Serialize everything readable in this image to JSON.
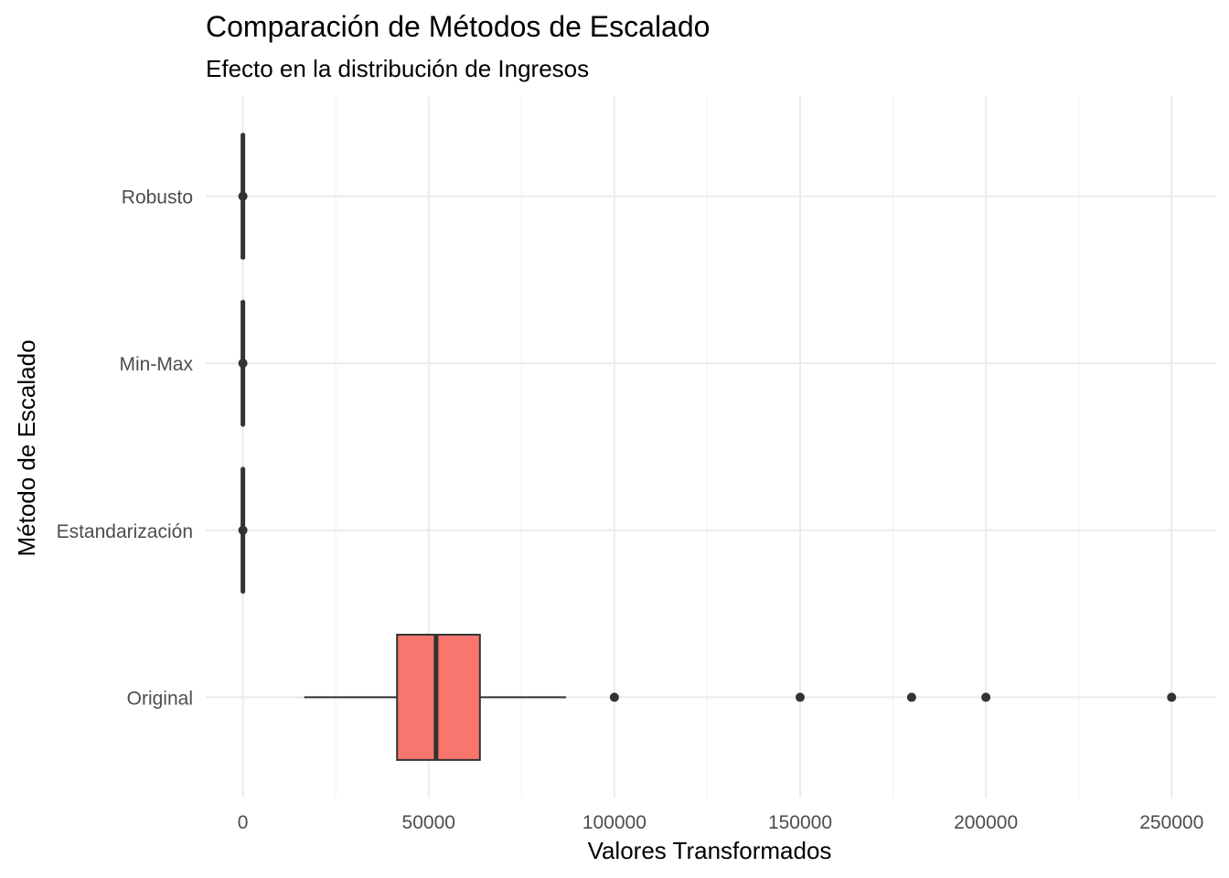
{
  "chart_data": {
    "type": "boxplot",
    "orientation": "horizontal",
    "title": "Comparación de Métodos de Escalado",
    "subtitle": "Efecto en la distribución de Ingresos",
    "xlabel": "Valores Transformados",
    "ylabel": "Método de Escalado",
    "xlim": [
      -10000,
      262000
    ],
    "x_ticks": [
      0,
      50000,
      100000,
      150000,
      200000,
      250000
    ],
    "x_tick_labels": [
      "0",
      "50000",
      "100000",
      "150000",
      "200000",
      "250000"
    ],
    "grid": true,
    "legend": "none",
    "categories": [
      "Original",
      "Estandarización",
      "Min-Max",
      "Robusto"
    ],
    "boxes": [
      {
        "category": "Original",
        "whisker_low": 16500,
        "q1": 41500,
        "median": 52000,
        "q3": 63800,
        "whisker_high": 87000,
        "outliers": [
          100000,
          150000,
          180000,
          200000,
          250000
        ],
        "color": "#f8766d"
      },
      {
        "category": "Estandarización",
        "whisker_low": 0,
        "q1": 0,
        "median": 0,
        "q3": 0,
        "whisker_high": 0,
        "outliers": [
          0
        ],
        "color": "#f8766d"
      },
      {
        "category": "Min-Max",
        "whisker_low": 0,
        "q1": 0,
        "median": 0,
        "q3": 0,
        "whisker_high": 0,
        "outliers": [
          0
        ],
        "color": "#f8766d"
      },
      {
        "category": "Robusto",
        "whisker_low": 0,
        "q1": 0,
        "median": 0,
        "q3": 0,
        "whisker_high": 0,
        "outliers": [
          0
        ],
        "color": "#f8766d"
      }
    ]
  }
}
